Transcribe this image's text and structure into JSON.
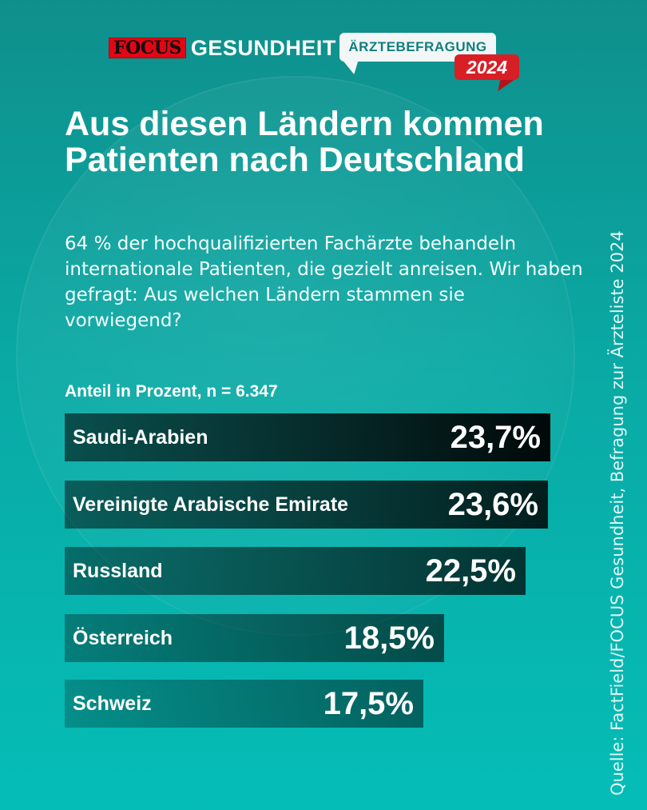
{
  "header": {
    "brand_focus": "FOCUS",
    "brand_name": "GESUNDHEIT",
    "badge_label": "ÄRZTEBEFRAGUNG",
    "badge_year": "2024"
  },
  "source": "Quelle: FactField/FOCUS Gesundheit, Befragung zur Ärzteliste 2024",
  "colors": {
    "background_top": "#0f8f8c",
    "background_bottom": "#05bdb7",
    "bar_dark": "#000000",
    "badge_red": "#d81f26"
  },
  "chart_data": {
    "type": "bar",
    "orientation": "horizontal",
    "title": "Aus diesen Ländern kommen Patienten nach Deutschland",
    "subtitle": "64 % der hochqualifizierten Fachärzte behandeln internationale Patienten, die gezielt anreisen. Wir haben gefragt: Aus welchen Ländern stammen sie vorwiegend?",
    "note": "Anteil in Prozent, n = 6.347",
    "categories": [
      "Saudi-Arabien",
      "Vereinigte Arabische Emirate",
      "Russland",
      "Österreich",
      "Schweiz"
    ],
    "values": [
      23.7,
      23.6,
      22.5,
      18.5,
      17.5
    ],
    "value_labels": [
      "23,7%",
      "23,6%",
      "22,5%",
      "18,5%",
      "17,5%"
    ],
    "unit": "%",
    "grid": false,
    "legend": "none"
  }
}
